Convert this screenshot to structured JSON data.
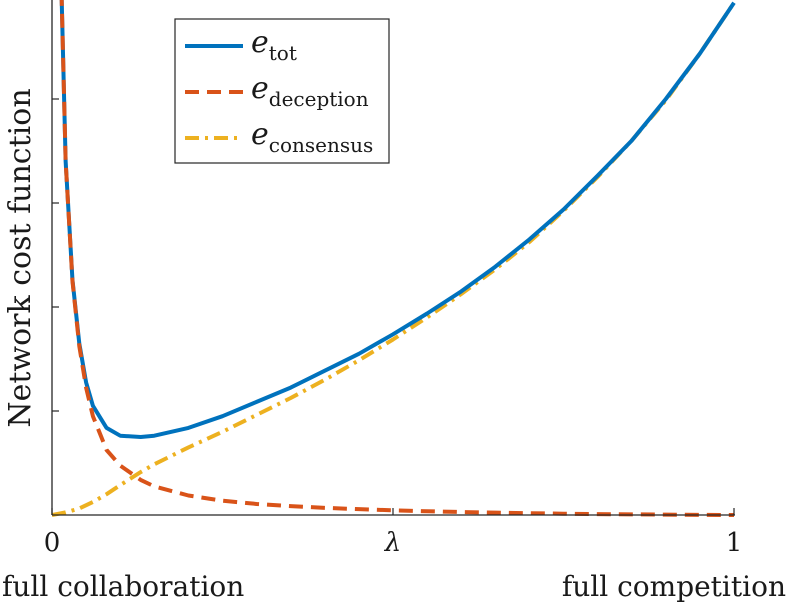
{
  "chart_data": {
    "type": "line",
    "ylabel": "Network cost function",
    "xlabel": "",
    "xlim": [
      0,
      1
    ],
    "x_ticks": [
      {
        "value": 0,
        "label": "0"
      },
      {
        "value": 0.5,
        "label": "λ"
      },
      {
        "value": 1,
        "label": "1"
      }
    ],
    "x_end_labels": {
      "left": "full collaboration",
      "right": "full competition"
    },
    "y_tick_labels_shown": false,
    "grid": false,
    "legend_position": "top-center",
    "series": [
      {
        "name": "e_tot",
        "legend_base": "e",
        "legend_sub": "tot",
        "color": "#0072BD",
        "style": "solid",
        "x": [
          0.01,
          0.02,
          0.03,
          0.04,
          0.05,
          0.06,
          0.08,
          0.1,
          0.13,
          0.15,
          0.2,
          0.25,
          0.3,
          0.35,
          0.4,
          0.45,
          0.5,
          0.55,
          0.6,
          0.65,
          0.7,
          0.75,
          0.8,
          0.85,
          0.9,
          0.95,
          1.0
        ],
        "y": [
          4.87,
          2.72,
          1.81,
          1.32,
          1.02,
          0.84,
          0.67,
          0.61,
          0.6,
          0.61,
          0.67,
          0.76,
          0.87,
          0.98,
          1.11,
          1.24,
          1.39,
          1.55,
          1.72,
          1.91,
          2.12,
          2.35,
          2.61,
          2.88,
          3.2,
          3.55,
          3.94
        ]
      },
      {
        "name": "e_deception",
        "legend_base": "e",
        "legend_sub": "deception",
        "color": "#D95319",
        "style": "dashed",
        "x": [
          0.01,
          0.02,
          0.03,
          0.04,
          0.05,
          0.06,
          0.08,
          0.1,
          0.13,
          0.15,
          0.2,
          0.25,
          0.3,
          0.35,
          0.4,
          0.45,
          0.5,
          0.55,
          0.6,
          0.65,
          0.7,
          0.75,
          0.8,
          0.85,
          0.9,
          0.95,
          1.0
        ],
        "y": [
          4.87,
          2.72,
          1.8,
          1.3,
          0.98,
          0.76,
          0.5,
          0.38,
          0.27,
          0.22,
          0.15,
          0.11,
          0.085,
          0.068,
          0.055,
          0.045,
          0.036,
          0.029,
          0.023,
          0.018,
          0.014,
          0.01,
          0.007,
          0.005,
          0.003,
          0.001,
          0.0
        ]
      },
      {
        "name": "e_consensus",
        "legend_base": "e",
        "legend_sub": "consensus",
        "color": "#EDB120",
        "style": "dashdot",
        "x": [
          0.0,
          0.02,
          0.04,
          0.06,
          0.08,
          0.1,
          0.13,
          0.15,
          0.2,
          0.25,
          0.3,
          0.35,
          0.4,
          0.45,
          0.5,
          0.55,
          0.6,
          0.65,
          0.7,
          0.75,
          0.8,
          0.85,
          0.9,
          0.95,
          1.0
        ],
        "y": [
          0.0,
          0.02,
          0.05,
          0.1,
          0.16,
          0.23,
          0.33,
          0.39,
          0.52,
          0.64,
          0.77,
          0.9,
          1.04,
          1.19,
          1.35,
          1.52,
          1.7,
          1.89,
          2.1,
          2.34,
          2.6,
          2.88,
          3.19,
          3.55,
          3.94
        ]
      }
    ]
  }
}
